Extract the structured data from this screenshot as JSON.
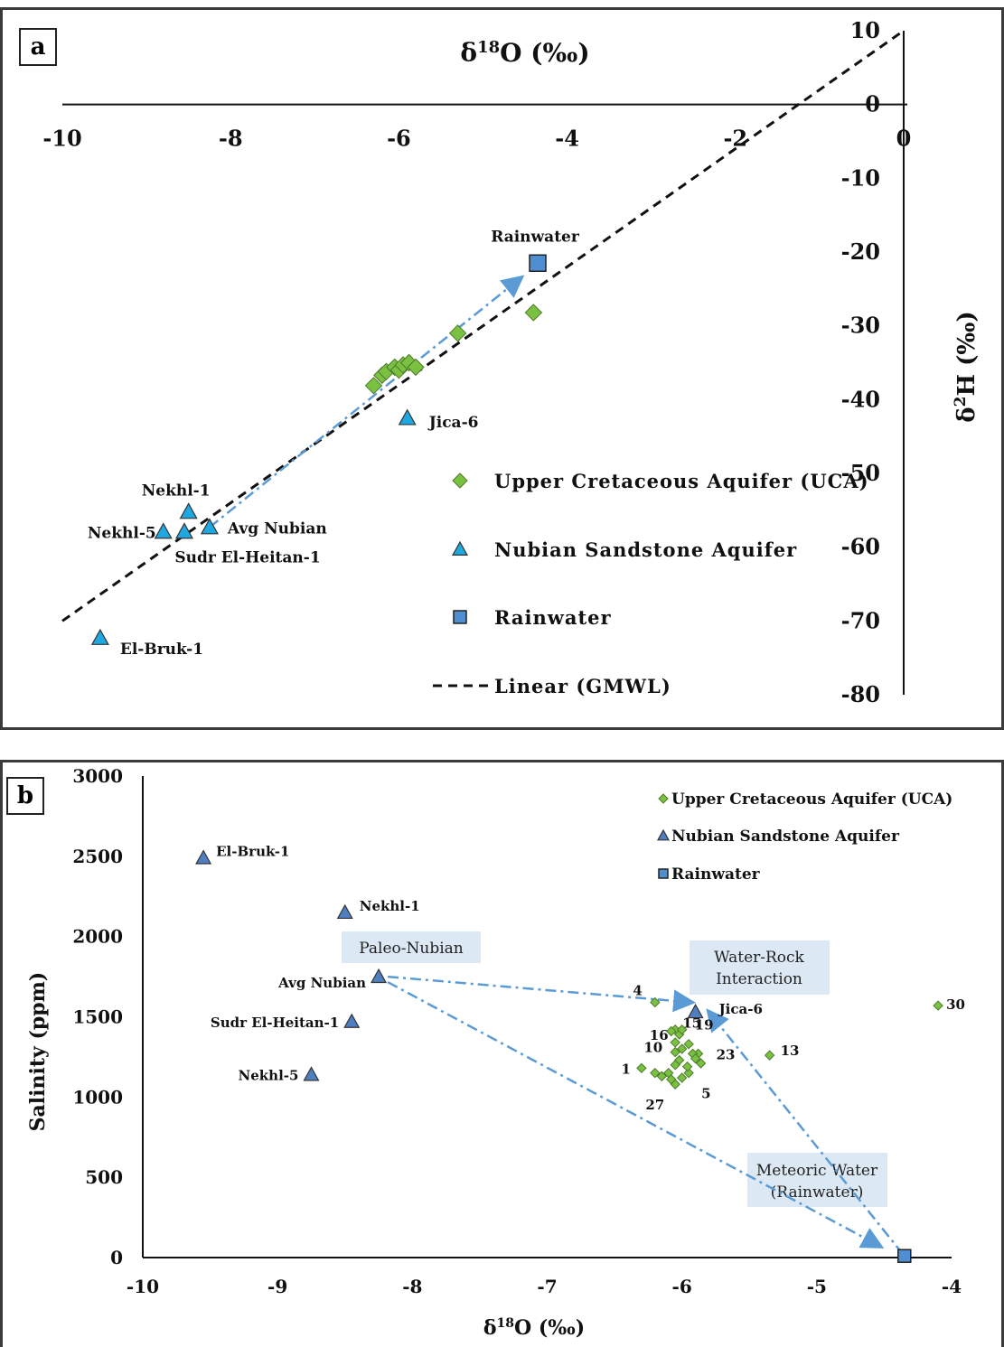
{
  "chart_data": [
    {
      "panel_label": "a",
      "type": "scatter",
      "xlabel": "δ18O (‰)",
      "ylabel": "δ2H (‰)",
      "xlim": [
        -10,
        0
      ],
      "ylim": [
        -80,
        10
      ],
      "x_ticks": [
        "-10",
        "-8",
        "-6",
        "-4",
        "-2",
        "0"
      ],
      "y_ticks": [
        "10",
        "0",
        "-10",
        "-20",
        "-30",
        "-40",
        "-50",
        "-60",
        "-70",
        "-80"
      ],
      "colors": {
        "uca": "#7ac142",
        "nubian": "#1fa8e0",
        "rain": "#4f8ed0"
      },
      "series": [
        {
          "name": "Upper Cretaceous Aquifer (UCA)",
          "marker": "diamond",
          "points": [
            {
              "x": -6.3,
              "y": -38.1
            },
            {
              "x": -6.2,
              "y": -36.7
            },
            {
              "x": -6.15,
              "y": -36.2
            },
            {
              "x": -6.05,
              "y": -35.6
            },
            {
              "x": -6.0,
              "y": -36.0
            },
            {
              "x": -5.95,
              "y": -35.3
            },
            {
              "x": -5.88,
              "y": -35.0
            },
            {
              "x": -5.8,
              "y": -35.6
            },
            {
              "x": -5.3,
              "y": -31.0
            },
            {
              "x": -4.4,
              "y": -28.2
            }
          ]
        },
        {
          "name": "Nubian Sandstone Aquifer",
          "marker": "triangle",
          "points": [
            {
              "x": -5.9,
              "y": -42.5,
              "label": "Jica-6"
            },
            {
              "x": -8.5,
              "y": -55.2,
              "label": "Nekhl-1"
            },
            {
              "x": -8.8,
              "y": -57.9,
              "label": "Nekhl-5"
            },
            {
              "x": -8.55,
              "y": -57.9,
              "label": "Sudr El-Heitan-1"
            },
            {
              "x": -8.25,
              "y": -57.3,
              "label": "Avg Nubian"
            },
            {
              "x": -9.55,
              "y": -72.3,
              "label": "El-Bruk-1"
            }
          ]
        },
        {
          "name": "Rainwater",
          "marker": "square",
          "points": [
            {
              "x": -4.35,
              "y": -21.5,
              "label": "Rainwater"
            }
          ]
        },
        {
          "name": "Linear (GMWL)",
          "type": "line",
          "x": [
            -10,
            0
          ],
          "y": [
            -70,
            10
          ]
        }
      ],
      "arrow": {
        "from": {
          "x": -8.25,
          "y": -57.3
        },
        "to": {
          "x": -4.55,
          "y": -23.5
        }
      }
    },
    {
      "panel_label": "b",
      "type": "scatter",
      "xlabel": "δ18O (‰)",
      "ylabel": "Salinity (ppm)",
      "xlim": [
        -10,
        -4
      ],
      "ylim": [
        0,
        3000
      ],
      "x_ticks": [
        "-10",
        "-9",
        "-8",
        "-7",
        "-6",
        "-5",
        "-4"
      ],
      "y_ticks": [
        "3000",
        "2500",
        "2000",
        "1500",
        "1000",
        "500",
        "0"
      ],
      "colors": {
        "uca": "#7ac142",
        "nubian": "#4f7fc0",
        "rain": "#4f8ed0",
        "callout": "#dce8f4"
      },
      "series": [
        {
          "name": "Upper Cretaceous Aquifer (UCA)",
          "marker": "diamond",
          "points": [
            {
              "x": -6.2,
              "y": 1590,
              "label": "4"
            },
            {
              "x": -6.3,
              "y": 1180,
              "label": "1"
            },
            {
              "x": -6.05,
              "y": 1420,
              "label": "15"
            },
            {
              "x": -6.02,
              "y": 1390,
              "label": "16"
            },
            {
              "x": -6.0,
              "y": 1420,
              "label": "19"
            },
            {
              "x": -6.05,
              "y": 1280,
              "label": "10"
            },
            {
              "x": -5.88,
              "y": 1270,
              "label": "23"
            },
            {
              "x": -6.05,
              "y": 1080,
              "label": "27"
            },
            {
              "x": -5.95,
              "y": 1150,
              "label": "5"
            },
            {
              "x": -5.35,
              "y": 1260,
              "label": "13"
            },
            {
              "x": -4.1,
              "y": 1570,
              "label": "30"
            },
            {
              "x": -6.08,
              "y": 1410
            },
            {
              "x": -6.05,
              "y": 1340
            },
            {
              "x": -6.0,
              "y": 1300
            },
            {
              "x": -5.95,
              "y": 1330
            },
            {
              "x": -5.92,
              "y": 1270
            },
            {
              "x": -5.9,
              "y": 1240
            },
            {
              "x": -5.86,
              "y": 1210
            },
            {
              "x": -6.02,
              "y": 1230
            },
            {
              "x": -6.05,
              "y": 1200
            },
            {
              "x": -6.1,
              "y": 1150
            },
            {
              "x": -6.15,
              "y": 1130
            },
            {
              "x": -6.2,
              "y": 1150
            },
            {
              "x": -6.08,
              "y": 1110
            },
            {
              "x": -6.0,
              "y": 1120
            },
            {
              "x": -5.96,
              "y": 1190
            }
          ]
        },
        {
          "name": "Nubian Sandstone Aquifer",
          "marker": "triangle",
          "points": [
            {
              "x": -9.55,
              "y": 2490,
              "label": "El-Bruk-1"
            },
            {
              "x": -8.5,
              "y": 2150,
              "label": "Nekhl-1"
            },
            {
              "x": -8.25,
              "y": 1750,
              "label": "Avg Nubian"
            },
            {
              "x": -8.45,
              "y": 1470,
              "label": "Sudr El-Heitan-1"
            },
            {
              "x": -8.75,
              "y": 1140,
              "label": "Nekhl-5"
            },
            {
              "x": -5.9,
              "y": 1530,
              "label": "Jica-6"
            }
          ]
        },
        {
          "name": "Rainwater",
          "marker": "square",
          "points": [
            {
              "x": -4.35,
              "y": 10
            }
          ]
        }
      ],
      "callouts": [
        "Paleo-Nubian",
        "Water-Rock Interaction",
        "Meteoric Water (Rainwater)"
      ]
    }
  ],
  "callout_lines": {
    "paleo": "Paleo-Nubian",
    "wr1": "Water-Rock",
    "wr2": "Interaction",
    "mw1": "Meteoric Water",
    "mw2": "(Rainwater)"
  }
}
